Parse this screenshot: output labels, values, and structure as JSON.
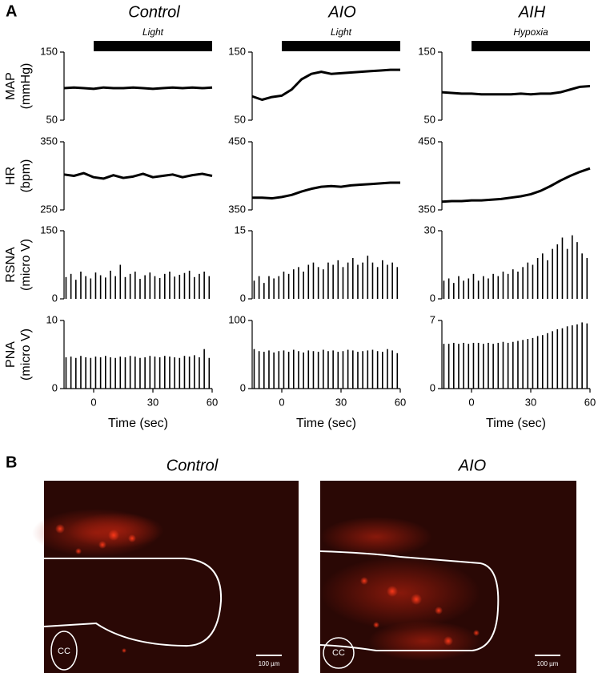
{
  "panel_a": {
    "label": "A",
    "columns": [
      {
        "title": "Control",
        "stimulus": "Light",
        "stimulus_range": [
          0,
          60
        ]
      },
      {
        "title": "AIO",
        "stimulus": "Light",
        "stimulus_range": [
          0,
          60
        ]
      },
      {
        "title": "AIH",
        "stimulus": "Hypoxia",
        "stimulus_range": [
          0,
          60
        ]
      }
    ]
  },
  "chart_data": [
    {
      "type": "line",
      "ylabel": "MAP",
      "ylabel_unit": "(mmHg)",
      "x": [
        -15,
        -10,
        -5,
        0,
        5,
        10,
        15,
        20,
        25,
        30,
        35,
        40,
        45,
        50,
        55,
        60
      ],
      "values": [
        97,
        98,
        97,
        96,
        98,
        97,
        97,
        98,
        97,
        96,
        97,
        98,
        97,
        98,
        97,
        98
      ],
      "xlim": [
        -15,
        60
      ],
      "ylim": [
        50,
        150
      ],
      "yticks": [
        50,
        150
      ],
      "color": "#000000"
    },
    {
      "type": "line",
      "ylabel": "HR",
      "ylabel_unit": "(bpm)",
      "x": [
        -15,
        -10,
        -5,
        0,
        5,
        10,
        15,
        20,
        25,
        30,
        35,
        40,
        45,
        50,
        55,
        60
      ],
      "values": [
        302,
        300,
        304,
        298,
        296,
        301,
        297,
        299,
        303,
        298,
        300,
        302,
        298,
        301,
        303,
        300
      ],
      "xlim": [
        -15,
        60
      ],
      "ylim": [
        250,
        350
      ],
      "yticks": [
        250,
        350
      ],
      "color": "#000000"
    },
    {
      "type": "spike",
      "ylabel": "RSNA",
      "ylabel_unit": "(micro V)",
      "x": [
        -14,
        -11.5,
        -9,
        -6.5,
        -4,
        -1.5,
        1,
        3.5,
        6,
        8.5,
        11,
        13.5,
        16,
        18.5,
        21,
        23.5,
        26,
        28.5,
        31,
        33.5,
        36,
        38.5,
        41,
        43.5,
        46,
        48.5,
        51,
        53.5,
        56,
        58.5
      ],
      "values": [
        48,
        55,
        42,
        60,
        50,
        45,
        58,
        52,
        47,
        62,
        50,
        75,
        48,
        55,
        60,
        44,
        52,
        58,
        50,
        46,
        55,
        60,
        49,
        53,
        57,
        62,
        48,
        55,
        60,
        50
      ],
      "xlim": [
        -15,
        60
      ],
      "ylim": [
        0,
        150
      ],
      "yticks": [
        0,
        150
      ],
      "color": "#000000"
    },
    {
      "type": "spike",
      "ylabel": "PNA",
      "ylabel_unit": "(micro V)",
      "xlabel": "Time (sec)",
      "x": [
        -14,
        -11.5,
        -9,
        -6.5,
        -4,
        -1.5,
        1,
        3.5,
        6,
        8.5,
        11,
        13.5,
        16,
        18.5,
        21,
        23.5,
        26,
        28.5,
        31,
        33.5,
        36,
        38.5,
        41,
        43.5,
        46,
        48.5,
        51,
        53.5,
        56,
        58.5
      ],
      "values": [
        4.6,
        4.7,
        4.5,
        4.8,
        4.6,
        4.5,
        4.7,
        4.6,
        4.8,
        4.6,
        4.5,
        4.7,
        4.6,
        4.8,
        4.7,
        4.5,
        4.6,
        4.8,
        4.7,
        4.6,
        4.8,
        4.7,
        4.6,
        4.5,
        4.8,
        4.7,
        4.9,
        4.6,
        5.8,
        4.5
      ],
      "xlim": [
        -15,
        60
      ],
      "xticks": [
        0,
        30,
        60
      ],
      "ylim": [
        0,
        10
      ],
      "yticks": [
        0,
        10
      ],
      "color": "#000000"
    },
    {
      "type": "line",
      "x": [
        -15,
        -10,
        -5,
        0,
        5,
        10,
        15,
        20,
        25,
        30,
        35,
        40,
        45,
        50,
        55,
        60
      ],
      "values": [
        85,
        80,
        84,
        86,
        95,
        110,
        118,
        121,
        118,
        119,
        120,
        121,
        122,
        123,
        124,
        124
      ],
      "xlim": [
        -15,
        60
      ],
      "ylim": [
        50,
        150
      ],
      "yticks": [
        50,
        150
      ],
      "color": "#000000"
    },
    {
      "type": "line",
      "x": [
        -15,
        -10,
        -5,
        0,
        5,
        10,
        15,
        20,
        25,
        30,
        35,
        40,
        45,
        50,
        55,
        60
      ],
      "values": [
        368,
        368,
        367,
        369,
        372,
        377,
        381,
        384,
        385,
        384,
        386,
        387,
        388,
        389,
        390,
        390
      ],
      "xlim": [
        -15,
        60
      ],
      "ylim": [
        350,
        450
      ],
      "yticks": [
        350,
        450
      ],
      "color": "#000000"
    },
    {
      "type": "spike",
      "x": [
        -14,
        -11.5,
        -9,
        -6.5,
        -4,
        -1.5,
        1,
        3.5,
        6,
        8.5,
        11,
        13.5,
        16,
        18.5,
        21,
        23.5,
        26,
        28.5,
        31,
        33.5,
        36,
        38.5,
        41,
        43.5,
        46,
        48.5,
        51,
        53.5,
        56,
        58.5
      ],
      "values": [
        4,
        5,
        3.5,
        5,
        4.5,
        5,
        6,
        5.5,
        6.5,
        7,
        6,
        7.5,
        8,
        7,
        6.5,
        8,
        7.5,
        8.5,
        7,
        8,
        9,
        7.5,
        8,
        9.5,
        8,
        7,
        8.5,
        7.5,
        8,
        7
      ],
      "xlim": [
        -15,
        60
      ],
      "ylim": [
        0,
        15
      ],
      "yticks": [
        0,
        15
      ],
      "color": "#000000"
    },
    {
      "type": "spike",
      "xlabel": "Time (sec)",
      "x": [
        -14,
        -11.5,
        -9,
        -6.5,
        -4,
        -1.5,
        1,
        3.5,
        6,
        8.5,
        11,
        13.5,
        16,
        18.5,
        21,
        23.5,
        26,
        28.5,
        31,
        33.5,
        36,
        38.5,
        41,
        43.5,
        46,
        48.5,
        51,
        53.5,
        56,
        58.5
      ],
      "values": [
        58,
        55,
        54,
        56,
        53,
        55,
        56,
        54,
        57,
        55,
        53,
        56,
        55,
        54,
        57,
        55,
        56,
        54,
        55,
        57,
        56,
        54,
        55,
        56,
        57,
        55,
        54,
        58,
        56,
        52
      ],
      "xlim": [
        -15,
        60
      ],
      "xticks": [
        0,
        30,
        60
      ],
      "ylim": [
        0,
        100
      ],
      "yticks": [
        0,
        100
      ],
      "color": "#000000"
    },
    {
      "type": "line",
      "x": [
        -15,
        -10,
        -5,
        0,
        5,
        10,
        15,
        20,
        25,
        30,
        35,
        40,
        45,
        50,
        55,
        60
      ],
      "values": [
        91,
        90,
        89,
        89,
        88,
        88,
        88,
        88,
        89,
        88,
        89,
        89,
        91,
        95,
        99,
        100
      ],
      "xlim": [
        -15,
        60
      ],
      "ylim": [
        50,
        150
      ],
      "yticks": [
        50,
        150
      ],
      "color": "#000000"
    },
    {
      "type": "line",
      "x": [
        -15,
        -10,
        -5,
        0,
        5,
        10,
        15,
        20,
        25,
        30,
        35,
        40,
        45,
        50,
        55,
        60
      ],
      "values": [
        362,
        363,
        363,
        364,
        364,
        365,
        366,
        368,
        370,
        373,
        378,
        385,
        393,
        400,
        406,
        411
      ],
      "xlim": [
        -15,
        60
      ],
      "ylim": [
        350,
        450
      ],
      "yticks": [
        350,
        450
      ],
      "color": "#000000"
    },
    {
      "type": "spike",
      "x": [
        -14,
        -11.5,
        -9,
        -6.5,
        -4,
        -1.5,
        1,
        3.5,
        6,
        8.5,
        11,
        13.5,
        16,
        18.5,
        21,
        23.5,
        26,
        28.5,
        31,
        33.5,
        36,
        38.5,
        41,
        43.5,
        46,
        48.5,
        51,
        53.5,
        56,
        58.5
      ],
      "values": [
        8,
        9,
        7,
        10,
        8,
        9,
        11,
        8,
        10,
        9,
        11,
        10,
        12,
        11,
        13,
        12,
        14,
        16,
        15,
        18,
        20,
        17,
        22,
        24,
        27,
        22,
        28,
        25,
        20,
        18
      ],
      "xlim": [
        -15,
        60
      ],
      "ylim": [
        0,
        30
      ],
      "yticks": [
        0,
        30
      ],
      "color": "#000000"
    },
    {
      "type": "spike",
      "xlabel": "Time (sec)",
      "x": [
        -14,
        -11.5,
        -9,
        -6.5,
        -4,
        -1.5,
        1,
        3.5,
        6,
        8.5,
        11,
        13.5,
        16,
        18.5,
        21,
        23.5,
        26,
        28.5,
        31,
        33.5,
        36,
        38.5,
        41,
        43.5,
        46,
        48.5,
        51,
        53.5,
        56,
        58.5
      ],
      "values": [
        4.6,
        4.6,
        4.7,
        4.6,
        4.7,
        4.6,
        4.7,
        4.7,
        4.6,
        4.7,
        4.6,
        4.7,
        4.8,
        4.7,
        4.8,
        4.9,
        5.0,
        5.1,
        5.2,
        5.4,
        5.5,
        5.7,
        5.9,
        6.1,
        6.2,
        6.4,
        6.5,
        6.6,
        6.8,
        6.7
      ],
      "xlim": [
        -15,
        60
      ],
      "xticks": [
        0,
        30,
        60
      ],
      "ylim": [
        0,
        7
      ],
      "yticks": [
        0,
        7
      ],
      "color": "#000000"
    }
  ],
  "panel_b": {
    "label": "B",
    "images": [
      {
        "title": "Control",
        "region_label": "CC",
        "scale_label": "100 µm"
      },
      {
        "title": "AIO",
        "region_label": "CC",
        "scale_label": "100 µm"
      }
    ]
  }
}
